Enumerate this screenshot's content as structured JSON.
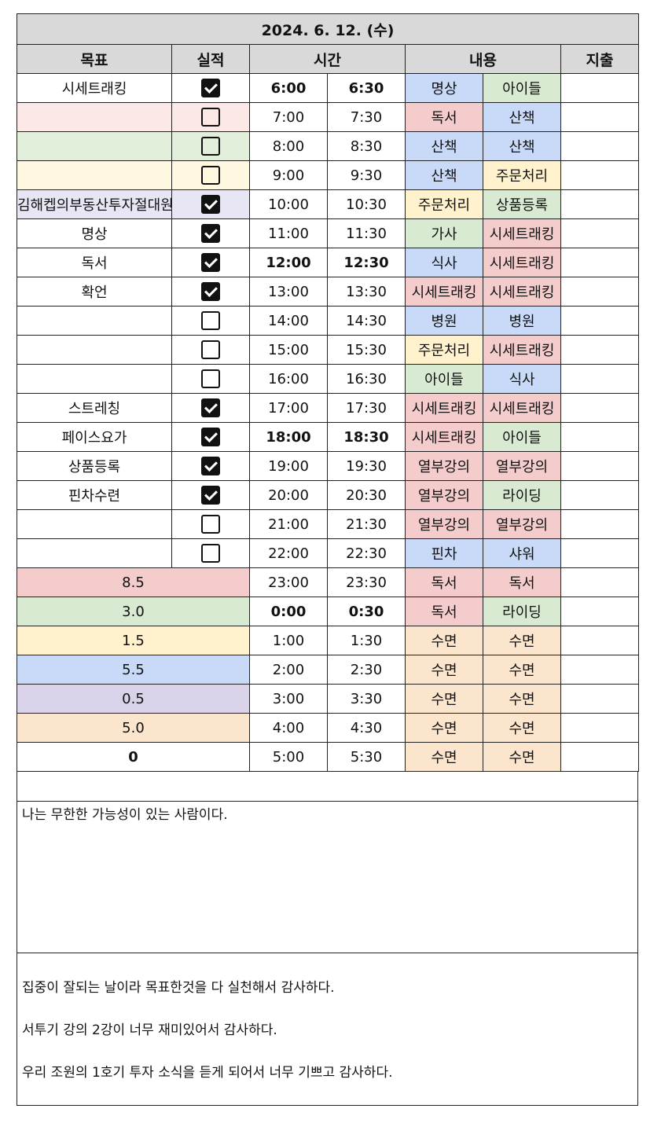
{
  "date": "2024. 6. 12. (수)",
  "headers": {
    "goal": "목표",
    "done": "실적",
    "time": "시간",
    "content": "내용",
    "expense": "지출"
  },
  "colors": {
    "red": "#f4cccc",
    "green": "#d9ead3",
    "yellow": "#fff2cc",
    "blue": "#c9daf8",
    "purple": "#d9d2e9",
    "orange": "#fce5cd"
  },
  "rows": [
    {
      "goal": "시세트래킹",
      "done": true,
      "start": "6:00",
      "end": "6:30",
      "a": "명상",
      "b": "아이들"
    },
    {
      "goal": "",
      "done": false,
      "start": "7:00",
      "end": "7:30",
      "a": "독서",
      "b": "산책"
    },
    {
      "goal": "",
      "done": false,
      "start": "8:00",
      "end": "8:30",
      "a": "산책",
      "b": "산책"
    },
    {
      "goal": "",
      "done": false,
      "start": "9:00",
      "end": "9:30",
      "a": "산책",
      "b": "주문처리"
    },
    {
      "goal": "김해켑의부동산투자절대원칙",
      "done": true,
      "start": "10:00",
      "end": "10:30",
      "a": "주문처리",
      "b": "상품등록"
    },
    {
      "goal": "명상",
      "done": true,
      "start": "11:00",
      "end": "11:30",
      "a": "가사",
      "b": "시세트래킹"
    },
    {
      "goal": "독서",
      "done": true,
      "start": "12:00",
      "end": "12:30",
      "a": "식사",
      "b": "시세트래킹"
    },
    {
      "goal": "확언",
      "done": true,
      "start": "13:00",
      "end": "13:30",
      "a": "시세트래킹",
      "b": "시세트래킹"
    },
    {
      "goal": "",
      "done": false,
      "start": "14:00",
      "end": "14:30",
      "a": "병원",
      "b": "병원"
    },
    {
      "goal": "",
      "done": false,
      "start": "15:00",
      "end": "15:30",
      "a": "주문처리",
      "b": "시세트래킹"
    },
    {
      "goal": "",
      "done": false,
      "start": "16:00",
      "end": "16:30",
      "a": "아이들",
      "b": "식사"
    },
    {
      "goal": "스트레칭",
      "done": true,
      "start": "17:00",
      "end": "17:30",
      "a": "시세트래킹",
      "b": "시세트래킹"
    },
    {
      "goal": "페이스요가",
      "done": true,
      "start": "18:00",
      "end": "18:30",
      "a": "시세트래킹",
      "b": "아이들"
    },
    {
      "goal": "상품등록",
      "done": true,
      "start": "19:00",
      "end": "19:30",
      "a": "열부강의",
      "b": "열부강의"
    },
    {
      "goal": "핀차수련",
      "done": true,
      "start": "20:00",
      "end": "20:30",
      "a": "열부강의",
      "b": "라이딩"
    },
    {
      "goal": "",
      "done": false,
      "start": "21:00",
      "end": "21:30",
      "a": "열부강의",
      "b": "열부강의"
    },
    {
      "goal": "",
      "done": false,
      "start": "22:00",
      "end": "22:30",
      "a": "핀차",
      "b": "샤워"
    },
    {
      "summary": "8.5",
      "start": "23:00",
      "end": "23:30",
      "a": "독서",
      "b": "독서"
    },
    {
      "summary": "3.0",
      "start": "0:00",
      "end": "0:30",
      "a": "독서",
      "b": "라이딩"
    },
    {
      "summary": "1.5",
      "start": "1:00",
      "end": "1:30",
      "a": "수면",
      "b": "수면"
    },
    {
      "summary": "5.5",
      "start": "2:00",
      "end": "2:30",
      "a": "수면",
      "b": "수면"
    },
    {
      "summary": "0.5",
      "start": "3:00",
      "end": "3:30",
      "a": "수면",
      "b": "수면"
    },
    {
      "summary": "5.0",
      "start": "4:00",
      "end": "4:30",
      "a": "수면",
      "b": "수면"
    },
    {
      "summary": "0",
      "start": "5:00",
      "end": "5:30",
      "a": "수면",
      "b": "수면"
    }
  ],
  "affirmation": "나는 무한한 가능성이 있는 사람이다.",
  "gratitude": [
    "집중이 잘되는 날이라 목표한것을 다 실천해서 감사하다.",
    "서투기 강의 2강이 너무 재미있어서 감사하다.",
    "우리 조원의 1호기 투자 소식을 듣게 되어서 너무 기쁘고 감사하다."
  ]
}
